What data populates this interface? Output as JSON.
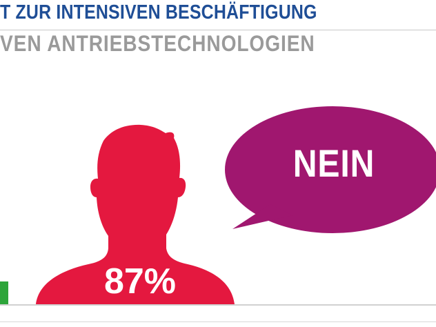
{
  "header": {
    "title": "T ZUR INTENSIVEN BESCHÄFTIGUNG",
    "subtitle": "VEN ANTRIEBSTECHNOLOGIEN"
  },
  "speech_bubble": {
    "text": "NEIN",
    "color": "#a0176f"
  },
  "person": {
    "value_text": "87%",
    "color": "#e4183f"
  },
  "colors": {
    "title": "#1f4e96",
    "subtitle": "#9a9a9a",
    "green_bar": "#2da53a"
  }
}
